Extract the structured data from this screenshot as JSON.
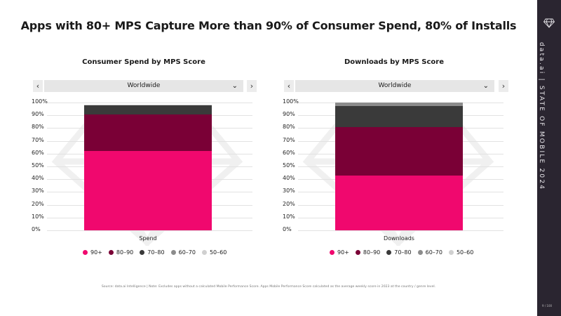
{
  "title": "Apps with 80+ MPS Capture More than 90% of Consumer Spend, 80% of Installs",
  "sidebar": {
    "brand_text": "data.ai | STATE OF MOBILE 2024",
    "page_number": "9 / 100",
    "logo_icon": "diamond-icon"
  },
  "source": "Source: data.ai Intelligence | Note: Excludes apps without a calculated Mobile Performance Score. Apps Mobile Performance Score calculated as the average weekly score in 2023 at the country / genre level.",
  "nav": {
    "prev_label": "‹",
    "next_label": "›",
    "chevron": "⌄"
  },
  "colors": {
    "s90": "#f0086e",
    "s80": "#7a0036",
    "s70": "#3a3a3a",
    "s60": "#8c8c8c",
    "s50": "#d0d0d0",
    "sidebar": "#2a2530"
  },
  "chart_data": [
    {
      "type": "bar",
      "stacked": true,
      "title": "Consumer Spend by MPS Score",
      "dropdown": "Worldwide",
      "categories": [
        "Spend"
      ],
      "yticks": [
        "100%",
        "90%",
        "80%",
        "70%",
        "60%",
        "50%",
        "40%",
        "30%",
        "20%",
        "10%",
        "0%"
      ],
      "ylim": [
        0,
        100
      ],
      "series": [
        {
          "name": "90+",
          "values": [
            62
          ]
        },
        {
          "name": "80–90",
          "values": [
            28.5
          ]
        },
        {
          "name": "70–80",
          "values": [
            7.5
          ]
        },
        {
          "name": "60–70",
          "values": [
            0.3
          ]
        },
        {
          "name": "50–60",
          "values": [
            0.1
          ]
        }
      ],
      "legend": "bottom"
    },
    {
      "type": "bar",
      "stacked": true,
      "title": "Downloads by MPS Score",
      "dropdown": "Worldwide",
      "categories": [
        "Downloads"
      ],
      "yticks": [
        "100%",
        "90%",
        "80%",
        "70%",
        "60%",
        "50%",
        "40%",
        "30%",
        "20%",
        "10%",
        "0%"
      ],
      "ylim": [
        0,
        100
      ],
      "series": [
        {
          "name": "90+",
          "values": [
            43
          ]
        },
        {
          "name": "80–90",
          "values": [
            38
          ]
        },
        {
          "name": "70–80",
          "values": [
            16
          ]
        },
        {
          "name": "60–70",
          "values": [
            3
          ]
        },
        {
          "name": "50–60",
          "values": [
            0
          ]
        }
      ],
      "legend": "bottom"
    }
  ]
}
